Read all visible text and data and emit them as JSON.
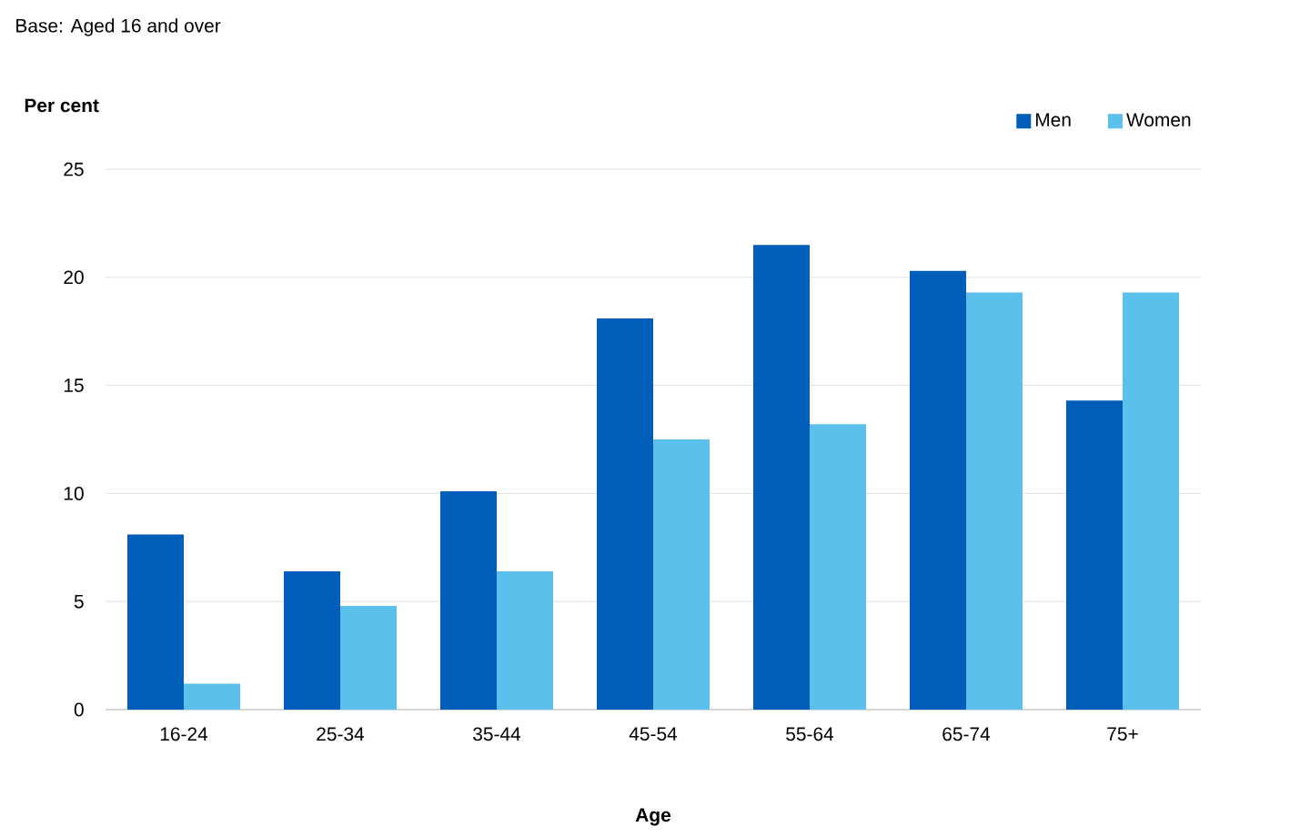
{
  "chart_data": {
    "type": "bar",
    "subtitle": "Base: Aged 16 and over",
    "ylabel": "Per cent",
    "xlabel": "Age",
    "categories": [
      "16-24",
      "25-34",
      "35-44",
      "45-54",
      "55-64",
      "65-74",
      "75+"
    ],
    "series": [
      {
        "name": "Men",
        "color": "#005eb8",
        "values": [
          8.1,
          6.4,
          10.1,
          18.1,
          21.5,
          20.3,
          14.3
        ]
      },
      {
        "name": "Women",
        "color": "#5bc0eb",
        "values": [
          1.2,
          4.8,
          6.4,
          12.5,
          13.2,
          19.3,
          19.3
        ]
      }
    ],
    "ylim": [
      0,
      25
    ],
    "yticks": [
      0,
      5,
      10,
      15,
      20,
      25
    ],
    "grid": "y",
    "legend": "top right"
  }
}
